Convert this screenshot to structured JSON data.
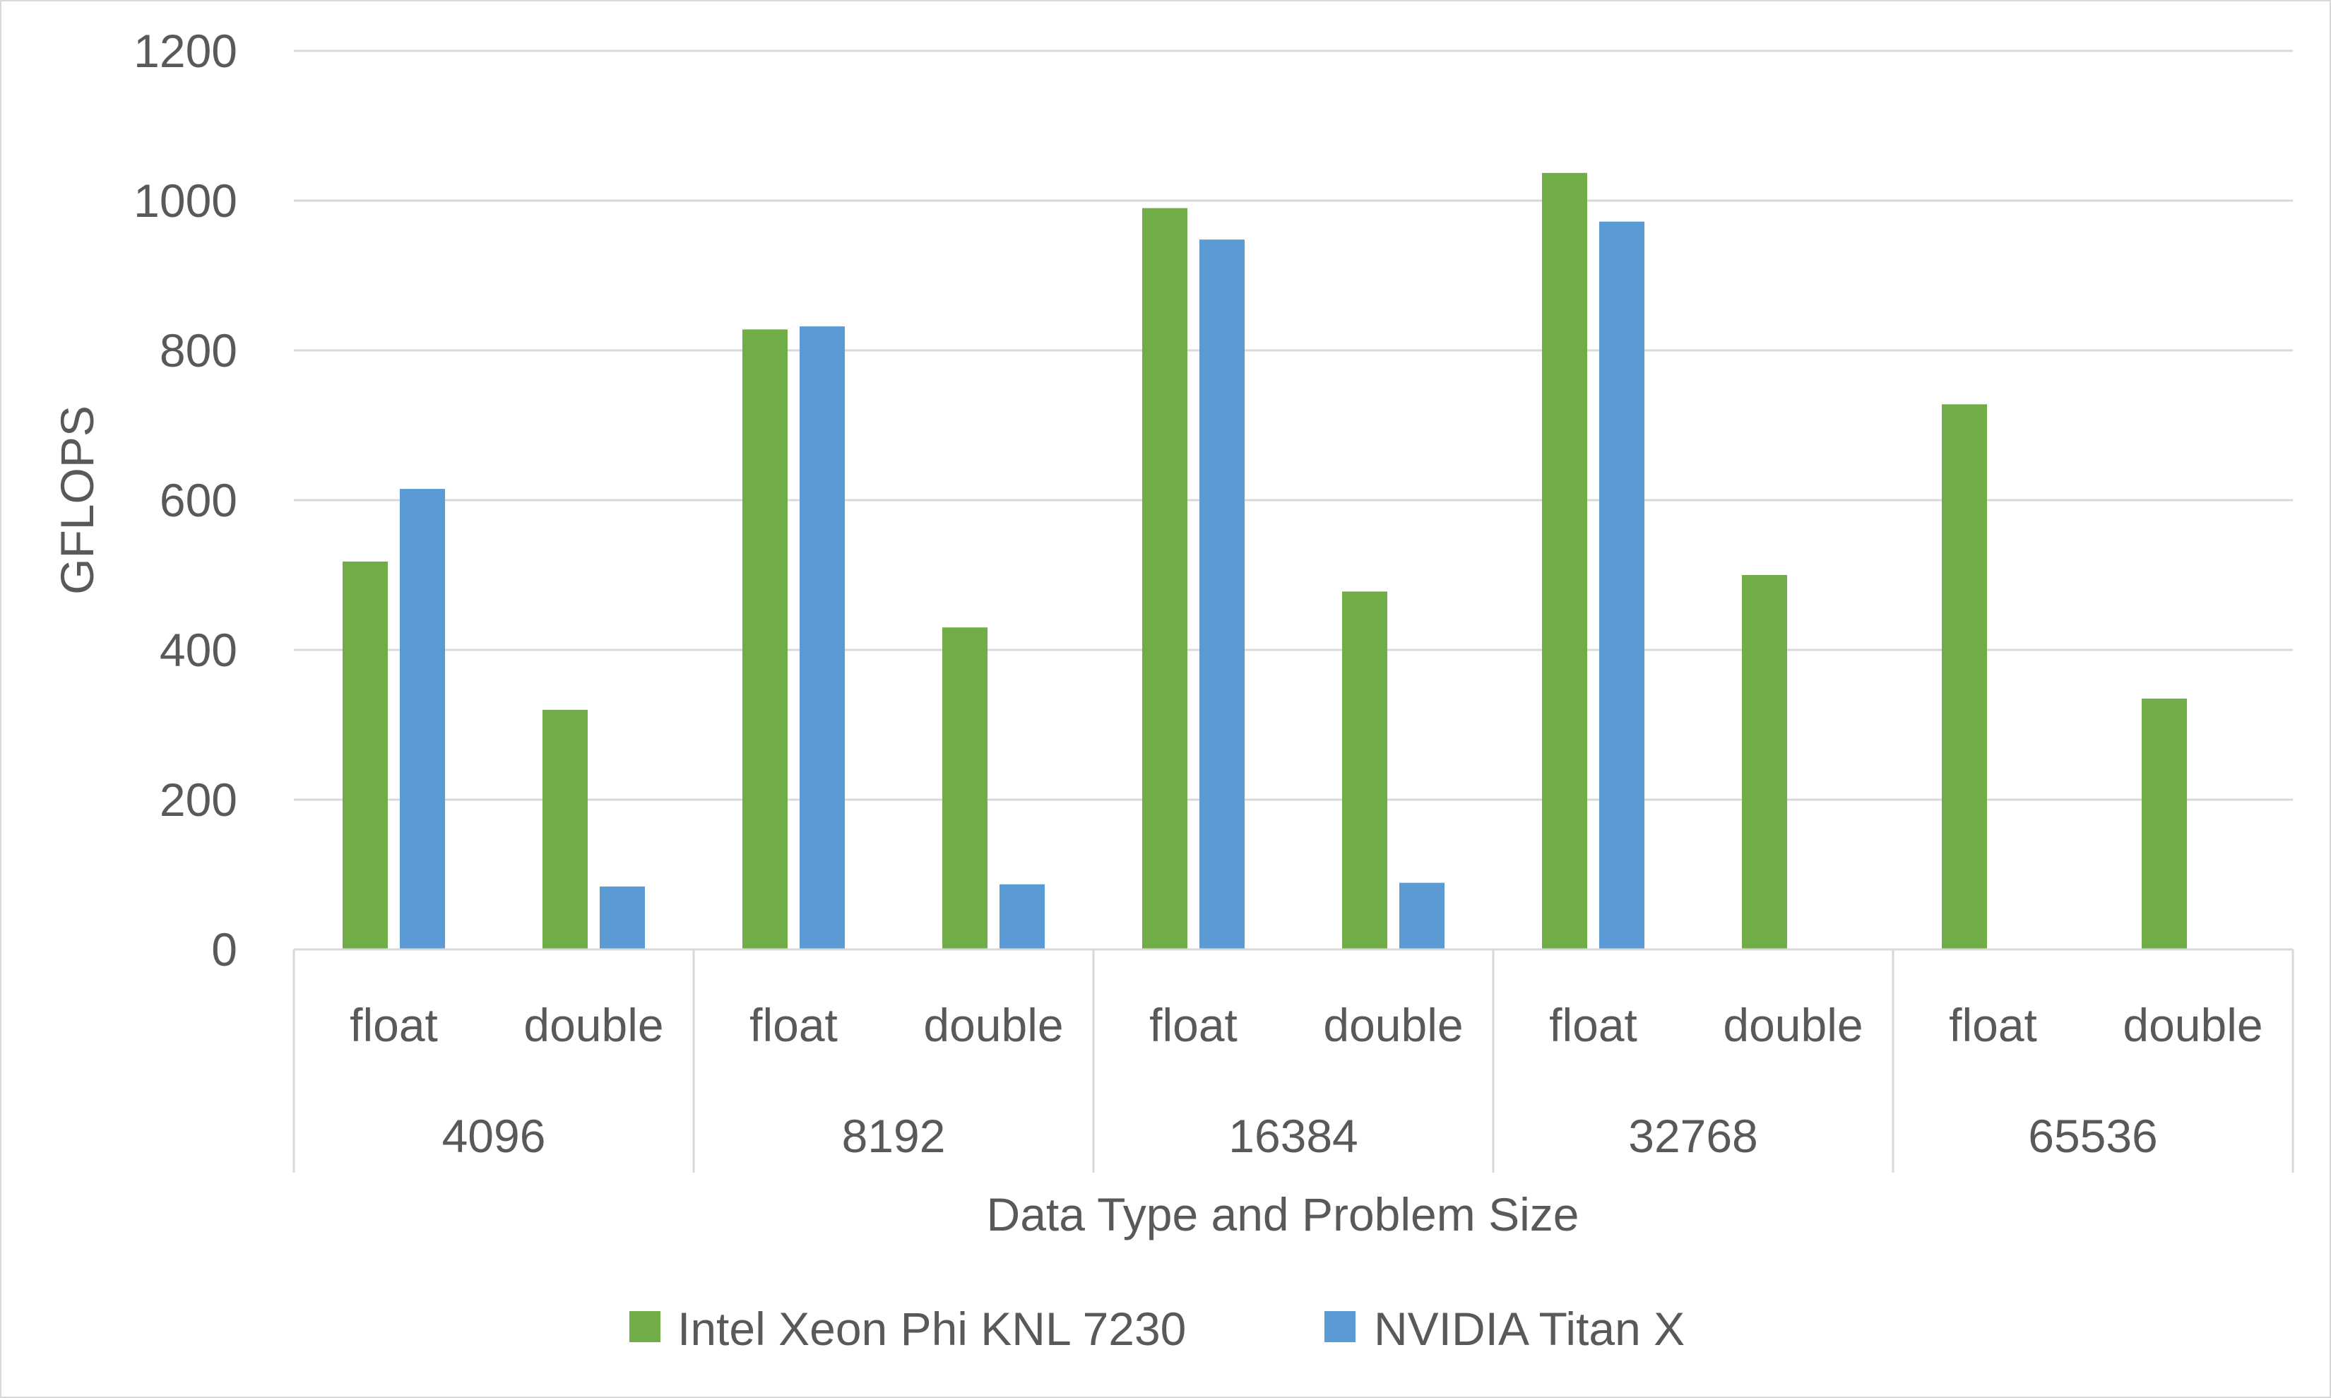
{
  "chart_data": {
    "type": "bar",
    "title": "",
    "xlabel": "Data Type and Problem Size",
    "ylabel": "GFLOPS",
    "ylim": [
      0,
      1200
    ],
    "yticks": [
      "0",
      "200",
      "400",
      "600",
      "800",
      "1000",
      "1200"
    ],
    "grid": true,
    "legend_position": "bottom",
    "groups": [
      "4096",
      "8192",
      "16384",
      "32768",
      "65536"
    ],
    "categories": [
      "float",
      "double",
      "float",
      "double",
      "float",
      "double",
      "float",
      "double",
      "float",
      "double"
    ],
    "series": [
      {
        "name": "Intel Xeon Phi KNL 7230",
        "color": "#70ad47",
        "values": [
          518,
          320,
          828,
          430,
          990,
          478,
          1037,
          500,
          728,
          335
        ]
      },
      {
        "name": "NVIDIA Titan X",
        "color": "#5b9bd5",
        "values": [
          615,
          84,
          832,
          87,
          948,
          89,
          972,
          null,
          null,
          null
        ]
      }
    ]
  }
}
